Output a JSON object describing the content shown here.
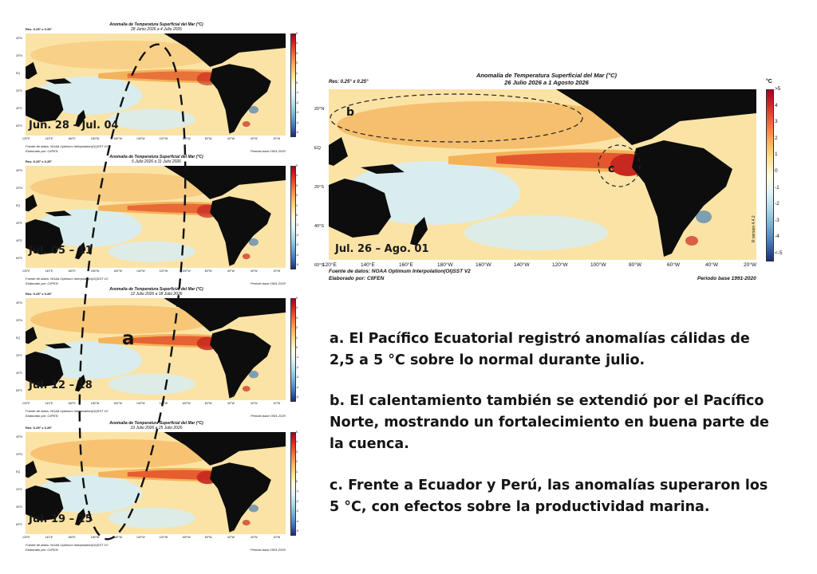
{
  "small_panels": [
    {
      "title": "Anomalía de Temperatura Superficial del Mar (°C)",
      "date_range": "28 Junio 2026 a 4 Julio 2026",
      "week_label": "Jun. 28 – Jul. 04"
    },
    {
      "title": "Anomalía de Temperatura Superficial del Mar (°C)",
      "date_range": "5 Julio 2026 a 11 Julio 2026",
      "week_label": "Jul. 05 – 11"
    },
    {
      "title": "Anomalía de Temperatura Superficial del Mar (°C)",
      "date_range": "12 Julio 2026 a 18 Julio 2026",
      "week_label": "Jul. 12 – 18"
    },
    {
      "title": "Anomalía de Temperatura Superficial del Mar (°C)",
      "date_range": "19 Julio 2026 a 25 Julio 2026",
      "week_label": "Jul. 19 – 25"
    }
  ],
  "small_common": {
    "resolution": "Res: 0.25° x 0.25°",
    "source_line1": "Fuente de datos: NOAA Optimum Interpolation(OI)SST V2",
    "source_line2": "Elaborado por: CIIFEN",
    "period": "Periodo base 1991-2020",
    "lon_ticks": [
      "120°E",
      "140°E",
      "160°E",
      "180°W",
      "160°W",
      "140°W",
      "120°W",
      "100°W",
      "80°W",
      "60°W",
      "40°W",
      "20°W"
    ],
    "lat_ticks": [
      "40°N",
      "20°N",
      "EQ",
      "20°S",
      "40°S",
      "60°S"
    ],
    "cbar_ticks": [
      "5",
      "4",
      "3",
      "2",
      "1",
      "0",
      "-1",
      "-2",
      "-3",
      "-4",
      "-5"
    ]
  },
  "large_panel": {
    "title": "Anomalía de Temperatura Superficial del Mar (°C)",
    "date_range": "26 Julio 2026 a 1 Agosto 2026",
    "resolution": "Res: 0.25° x 0.25°",
    "week_label": "Jul. 26 – Ago. 01",
    "source_line1": "Fuente de datos: NOAA Optimum Interpolation(OI)SST V2",
    "source_line2": "Elaborado por: CIIFEN",
    "period": "Periodo base 1991-2020",
    "version": "R version 4.4.2",
    "cbar_unit": "°C",
    "cbar_ticks": [
      ">5",
      "4",
      "3",
      "2",
      "1",
      "0",
      "-1",
      "-2",
      "-3",
      "-4",
      "<-5"
    ],
    "lon_ticks": [
      "120°E",
      "140°E",
      "160°E",
      "180°W",
      "160°W",
      "140°W",
      "120°W",
      "100°W",
      "80°W",
      "60°W",
      "40°W",
      "20°W"
    ],
    "lat_ticks": [
      "20°N",
      "EQ",
      "20°S",
      "40°S",
      "60°S"
    ],
    "markers": [
      "b",
      "c"
    ]
  },
  "marker_a": "a",
  "descriptions": [
    "a. El Pacífico Ecuatorial registró anomalías cálidas de 2,5 a 5 °C sobre lo normal durante julio.",
    "b. El calentamiento también se extendió por el Pacífico Norte, mostrando un fortalecimiento en buena parte de la cuenca.",
    "c. Frente a Ecuador y Perú, las anomalías superaron los 5 °C, con efectos sobre la productividad marina."
  ],
  "colors": {
    "land": "#0d0d0d",
    "warm_pale": "#fbe3a6",
    "warm": "#f4b35a",
    "hot": "#e4572e",
    "hotter": "#c7281f",
    "cool": "#d6edf6",
    "cold": "#2d6fb7"
  }
}
